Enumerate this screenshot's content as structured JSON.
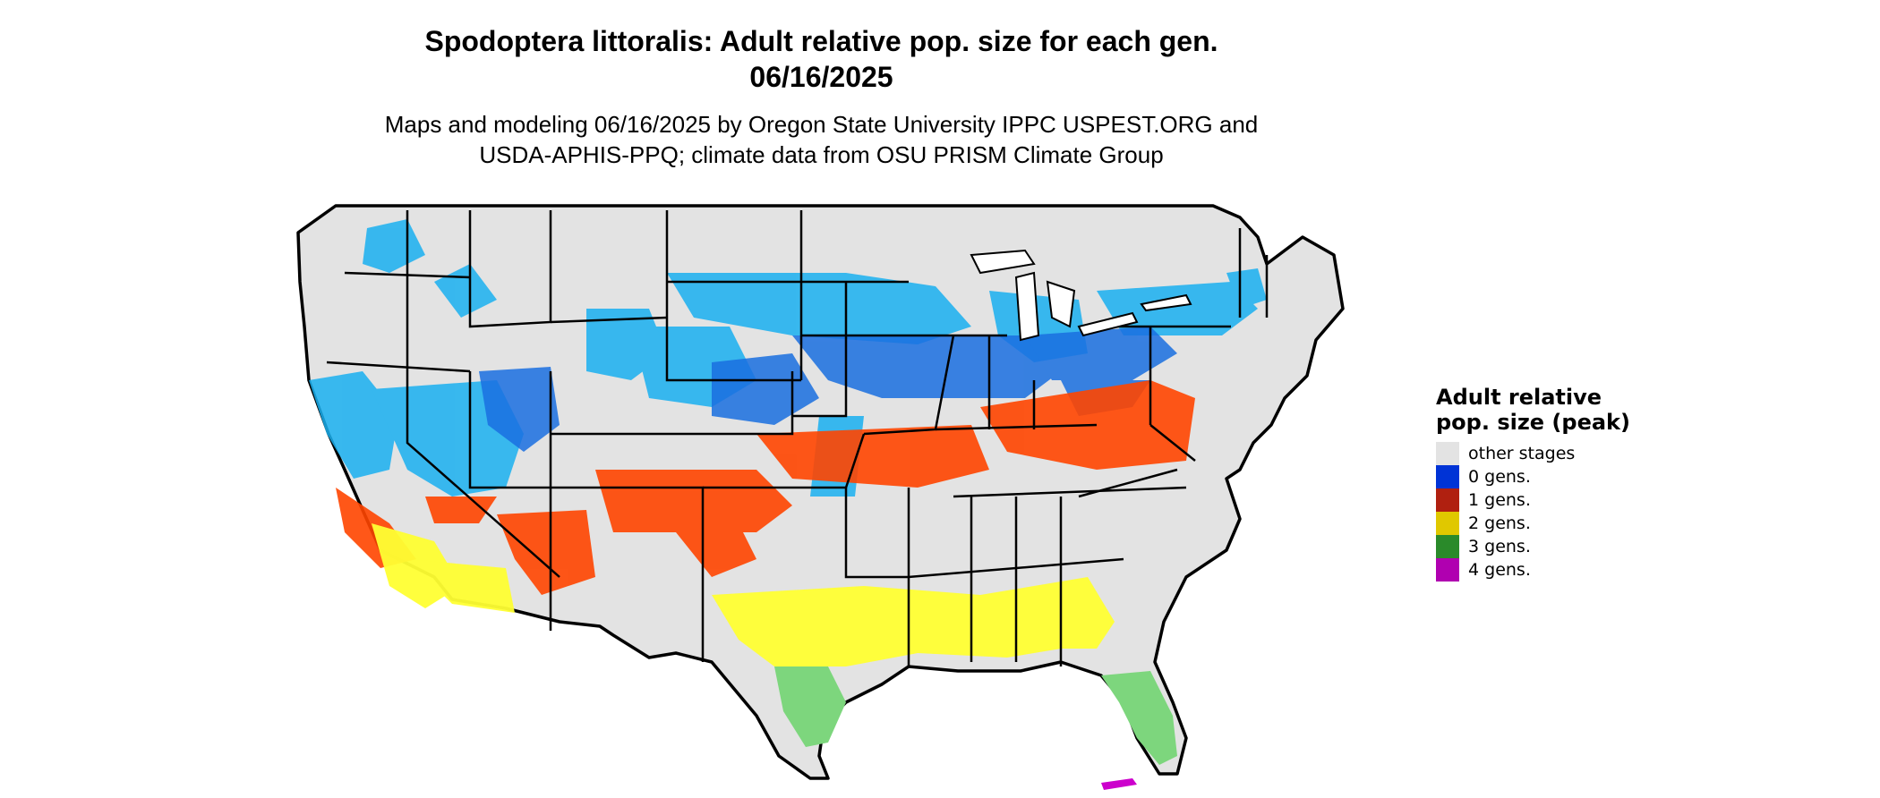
{
  "title_line1": "Spodoptera littoralis: Adult relative pop. size for each gen.",
  "title_line2": "06/16/2025",
  "subtitle_line1": "Maps and modeling 06/16/2025 by Oregon State University IPPC USPEST.ORG and",
  "subtitle_line2": "USDA-APHIS-PPQ; climate data from OSU PRISM Climate Group",
  "legend": {
    "title": "Adult relative pop. size (peak)",
    "items": [
      {
        "label": "other stages",
        "color": "#e3e3e3"
      },
      {
        "label": "0 gens.",
        "color": "#0033d6"
      },
      {
        "label": "1 gens.",
        "color": "#b02010"
      },
      {
        "label": "2 gens.",
        "color": "#e0c800"
      },
      {
        "label": "3 gens.",
        "color": "#2a8a2a"
      },
      {
        "label": "4 gens.",
        "color": "#b000b0"
      }
    ]
  },
  "map_colors": {
    "land": "#e3e3e3",
    "blue_light": "#1ab0f0",
    "blue_dark": "#1a6fe0",
    "orange": "#ff4500",
    "yellow": "#ffff33",
    "green": "#7dd67d",
    "magenta": "#cc00cc"
  }
}
